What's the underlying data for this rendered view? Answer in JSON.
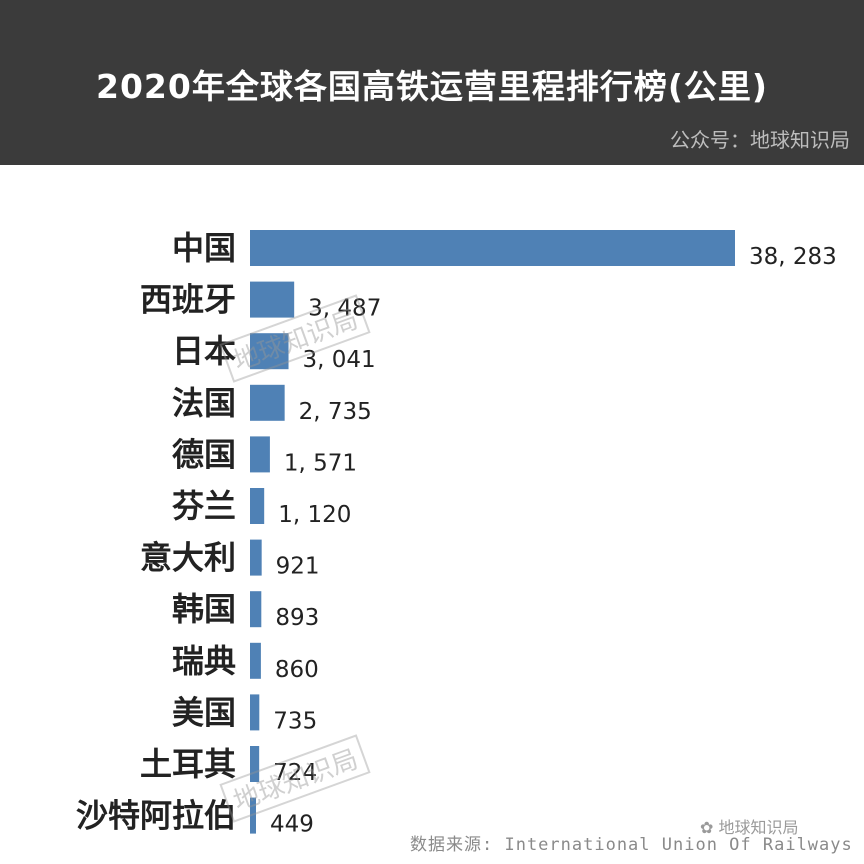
{
  "header": {
    "title": "2020年全球各国高铁运营里程排行榜(公里)",
    "account": "公众号：地球知识局",
    "background": "#3b3b3b"
  },
  "chart_data": {
    "type": "bar",
    "orientation": "horizontal",
    "title": "2020年全球各国高铁运营里程排行榜(公里)",
    "unit": "公里",
    "categories": [
      "中国",
      "西班牙",
      "日本",
      "法国",
      "德国",
      "芬兰",
      "意大利",
      "韩国",
      "瑞典",
      "美国",
      "土耳其",
      "沙特阿拉伯"
    ],
    "values": [
      38283,
      3487,
      3041,
      2735,
      1571,
      1120,
      921,
      893,
      860,
      735,
      724,
      449
    ],
    "value_labels": [
      "38, 283",
      "3, 487",
      "3, 041",
      "2, 735",
      "1, 571",
      "1, 120",
      "921",
      "893",
      "860",
      "735",
      "724",
      "449"
    ],
    "bar_color": "#4f81b5",
    "xlim": [
      0,
      38283
    ],
    "grid": false
  },
  "footer": {
    "source": "数据来源: International Union Of Railways",
    "logo_text": "地球知识局",
    "watermark": "地球知识局"
  }
}
